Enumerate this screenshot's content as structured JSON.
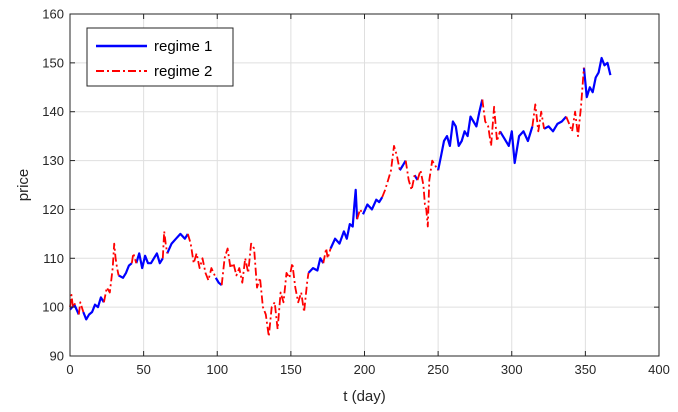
{
  "chart_data": {
    "type": "line",
    "title": "",
    "xlabel": "t (day)",
    "ylabel": "price",
    "xlim": [
      0,
      400
    ],
    "ylim": [
      90,
      160
    ],
    "xticks": [
      0,
      50,
      100,
      150,
      200,
      250,
      300,
      350,
      400
    ],
    "yticks": [
      90,
      100,
      110,
      120,
      130,
      140,
      150,
      160
    ],
    "grid": true,
    "legend_position": "top-left",
    "series": [
      {
        "name": "regime 1",
        "color": "#0000ff",
        "style": "solid",
        "segments": [
          {
            "x": [
              0,
              3,
              6
            ],
            "y": [
              99.5,
              100.5,
              98.5
            ]
          },
          {
            "x": [
              9,
              11,
              13,
              15,
              17,
              19,
              21,
              23
            ],
            "y": [
              99.0,
              97.5,
              98.5,
              99.0,
              100.5,
              100.0,
              102.0,
              101.0
            ]
          },
          {
            "x": [
              33,
              36,
              38,
              40,
              42
            ],
            "y": [
              106.5,
              106.0,
              107.0,
              108.5,
              109.0
            ]
          },
          {
            "x": [
              45,
              47,
              49,
              51,
              53,
              55,
              57,
              59,
              61,
              63
            ],
            "y": [
              109.0,
              111.0,
              108.0,
              110.5,
              109.0,
              109.0,
              110.0,
              111.0,
              109.0,
              110.0
            ]
          },
          {
            "x": [
              66,
              69,
              72,
              75,
              78,
              80
            ],
            "y": [
              111.0,
              113.0,
              114.0,
              115.0,
              114.0,
              115.0
            ]
          },
          {
            "x": [
              99,
              101,
              103
            ],
            "y": [
              106.0,
              105.0,
              104.5
            ]
          },
          {
            "x": [
              162,
              165,
              168,
              170,
              172
            ],
            "y": [
              107.0,
              108.0,
              107.5,
              110.0,
              109.0
            ]
          },
          {
            "x": [
              177,
              180,
              183,
              186,
              188,
              190,
              192,
              193,
              194,
              195
            ],
            "y": [
              112.0,
              114.0,
              113.0,
              115.5,
              114.0,
              117.0,
              116.5,
              120.5,
              124.0,
              118.0
            ]
          },
          {
            "x": [
              199,
              202,
              205,
              208,
              210,
              212
            ],
            "y": [
              119.0,
              121.0,
              120.0,
              122.0,
              121.5,
              122.5
            ]
          },
          {
            "x": [
              224,
              226,
              228
            ],
            "y": [
              128.0,
              129.0,
              130.0
            ]
          },
          {
            "x": [
              234,
              236
            ],
            "y": [
              127.0,
              126.0
            ]
          },
          {
            "x": [
              250,
              252,
              254,
              256,
              258,
              260,
              262,
              264,
              266,
              268,
              270,
              272,
              274,
              276,
              278,
              280
            ],
            "y": [
              128.0,
              131.0,
              134.0,
              135.0,
              133.0,
              138.0,
              137.0,
              133.0,
              134.0,
              136.0,
              135.0,
              139.0,
              138.0,
              137.0,
              140.0,
              142.5
            ]
          },
          {
            "x": [
              292,
              295,
              298,
              300,
              302,
              305,
              308,
              311,
              314
            ],
            "y": [
              136.0,
              134.5,
              133.0,
              136.0,
              129.5,
              135.0,
              136.0,
              134.0,
              137.0
            ]
          },
          {
            "x": [
              322,
              325,
              328,
              331,
              334,
              337
            ],
            "y": [
              136.5,
              137.0,
              136.0,
              137.5,
              138.0,
              139.0
            ]
          },
          {
            "x": [
              349,
              351,
              353,
              355,
              357,
              359,
              361,
              363,
              365,
              367
            ],
            "y": [
              149.0,
              143.0,
              145.0,
              144.0,
              147.0,
              148.0,
              151.0,
              149.5,
              150.0,
              147.5
            ]
          }
        ]
      },
      {
        "name": "regime 2",
        "color": "#ff0000",
        "style": "dashdot",
        "segments": [
          {
            "x": [
              0,
              1,
              2,
              4
            ],
            "y": [
              100.0,
              102.5,
              100.0,
              101.0
            ]
          },
          {
            "x": [
              6,
              7,
              8,
              9
            ],
            "y": [
              98.5,
              101.0,
              100.0,
              99.0
            ]
          },
          {
            "x": [
              23,
              25,
              27,
              29,
              30,
              31,
              32,
              33
            ],
            "y": [
              101.0,
              104.0,
              103.0,
              108.0,
              113.0,
              110.0,
              108.0,
              106.5
            ]
          },
          {
            "x": [
              42,
              43,
              44,
              45
            ],
            "y": [
              109.0,
              111.0,
              110.0,
              109.0
            ]
          },
          {
            "x": [
              63,
              64,
              65,
              66
            ],
            "y": [
              110.0,
              115.5,
              113.0,
              111.0
            ]
          },
          {
            "x": [
              80,
              82,
              84,
              86,
              88,
              90,
              92,
              94,
              96,
              99
            ],
            "y": [
              115.0,
              113.0,
              109.0,
              111.0,
              108.0,
              110.0,
              107.0,
              105.5,
              108.0,
              106.0
            ]
          },
          {
            "x": [
              103,
              105,
              107,
              109,
              111,
              113,
              115,
              117,
              119,
              121,
              123,
              125,
              127,
              129,
              131,
              133,
              135,
              137,
              139,
              141,
              143,
              145,
              147,
              149,
              151,
              153,
              155,
              157,
              159,
              161,
              162
            ],
            "y": [
              104.5,
              110.0,
              112.0,
              108.0,
              109.0,
              106.5,
              108.0,
              105.0,
              110.0,
              107.0,
              113.0,
              112.0,
              104.0,
              106.0,
              100.0,
              98.5,
              94.0,
              100.0,
              101.0,
              95.5,
              103.0,
              101.0,
              107.0,
              106.0,
              109.0,
              104.0,
              101.0,
              103.0,
              99.0,
              105.0,
              107.0
            ]
          },
          {
            "x": [
              172,
              174,
              175,
              177
            ],
            "y": [
              109.0,
              112.0,
              110.0,
              112.0
            ]
          },
          {
            "x": [
              195,
              197,
              199
            ],
            "y": [
              118.0,
              120.0,
              119.0
            ]
          },
          {
            "x": [
              212,
              214,
              216,
              218,
              220,
              222,
              224
            ],
            "y": [
              122.5,
              124.0,
              126.0,
              128.0,
              133.0,
              131.0,
              128.0
            ]
          },
          {
            "x": [
              228,
              230,
              232,
              234
            ],
            "y": [
              130.0,
              126.0,
              124.0,
              127.0
            ]
          },
          {
            "x": [
              236,
              238,
              240,
              241,
              242,
              243,
              244,
              246,
              248,
              250
            ],
            "y": [
              126.0,
              128.0,
              125.0,
              121.0,
              120.0,
              116.5,
              126.0,
              130.0,
              129.0,
              128.0
            ]
          },
          {
            "x": [
              280,
              282,
              284,
              286,
              288,
              290,
              292
            ],
            "y": [
              142.5,
              138.0,
              137.0,
              133.0,
              141.0,
              134.0,
              136.0
            ]
          },
          {
            "x": [
              314,
              316,
              318,
              320,
              322
            ],
            "y": [
              137.0,
              141.5,
              136.0,
              140.0,
              136.5
            ]
          },
          {
            "x": [
              337,
              339,
              341,
              343,
              345,
              347,
              349
            ],
            "y": [
              139.0,
              137.5,
              136.0,
              140.0,
              135.0,
              141.0,
              149.0
            ]
          }
        ]
      }
    ]
  }
}
